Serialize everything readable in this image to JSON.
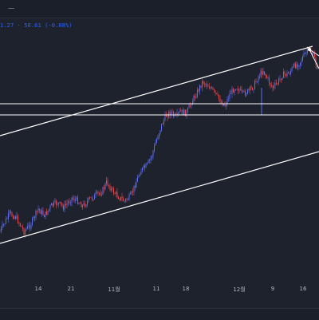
{
  "topbar": {
    "glyph": "ㅡ"
  },
  "legend": {
    "ohlc_text": "1.27 · 50.61 (-0.08%)"
  },
  "x_axis": {
    "labels": [
      "14",
      "21",
      "11월",
      "11",
      "18",
      "12월",
      "9",
      "16"
    ]
  },
  "colors": {
    "background": "#1e222d",
    "up": "#5b6cf0",
    "down": "#e8474a",
    "drawing_line": "#ffffff",
    "legend_accent": "#2962ff"
  },
  "chart_data": {
    "type": "line",
    "description_series": "candlestick-style price series with hand-drawn trend channel and horizontal levels",
    "x": [
      "14",
      "21",
      "11월",
      "11",
      "18",
      "12월",
      "9",
      "16"
    ],
    "title": "",
    "xlabel": "",
    "ylabel": "",
    "grid": false,
    "drawings": [
      "ascending channel upper line",
      "ascending channel lower line",
      "horizontal level",
      "horizontal level"
    ]
  }
}
